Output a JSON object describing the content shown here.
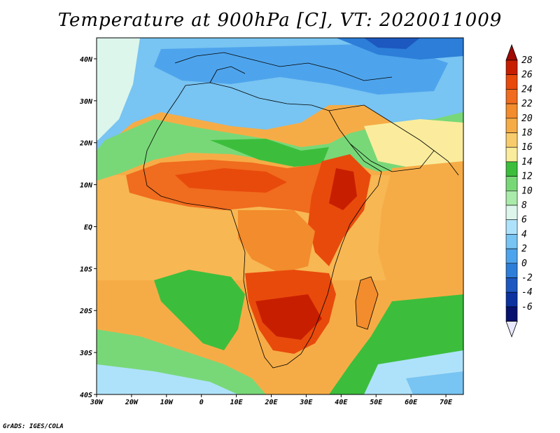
{
  "title": "Temperature at 900hPa [C], VT: 2020011009",
  "footer": "GrADS: IGES/COLA",
  "map": {
    "lon_range": [
      -30,
      75
    ],
    "lat_range": [
      -40,
      45
    ],
    "lat_ticks": [
      {
        "value": 40,
        "label": "40N"
      },
      {
        "value": 30,
        "label": "30N"
      },
      {
        "value": 20,
        "label": "20N"
      },
      {
        "value": 10,
        "label": "10N"
      },
      {
        "value": 0,
        "label": "EQ"
      },
      {
        "value": -10,
        "label": "10S"
      },
      {
        "value": -20,
        "label": "20S"
      },
      {
        "value": -30,
        "label": "30S"
      },
      {
        "value": -40,
        "label": "40S"
      }
    ],
    "lon_ticks": [
      {
        "value": -30,
        "label": "30W"
      },
      {
        "value": -20,
        "label": "20W"
      },
      {
        "value": -10,
        "label": "10W"
      },
      {
        "value": 0,
        "label": "0"
      },
      {
        "value": 10,
        "label": "10E"
      },
      {
        "value": 20,
        "label": "20E"
      },
      {
        "value": 30,
        "label": "30E"
      },
      {
        "value": 40,
        "label": "40E"
      },
      {
        "value": 50,
        "label": "50E"
      },
      {
        "value": 60,
        "label": "60E"
      },
      {
        "value": 70,
        "label": "70E"
      }
    ]
  },
  "colorbar": {
    "levels": [
      "28",
      "26",
      "24",
      "22",
      "20",
      "18",
      "16",
      "14",
      "12",
      "10",
      "8",
      "6",
      "4",
      "2",
      "0",
      "-2",
      "-4",
      "-6"
    ],
    "colors": [
      "#c81e00",
      "#e84a0c",
      "#f06c1e",
      "#f28c2c",
      "#f6ac46",
      "#f8cc6c",
      "#faec9c",
      "#3cbe3c",
      "#78d878",
      "#aaeaaa",
      "#dcf6ec",
      "#aee2fa",
      "#78c4f2",
      "#4ea4ec",
      "#2c7ed8",
      "#1c58c0",
      "#0c32a0",
      "#06126e"
    ],
    "top_arrow_color": "#a00a00",
    "bottom_arrow_color": "#e8e8ff"
  }
}
